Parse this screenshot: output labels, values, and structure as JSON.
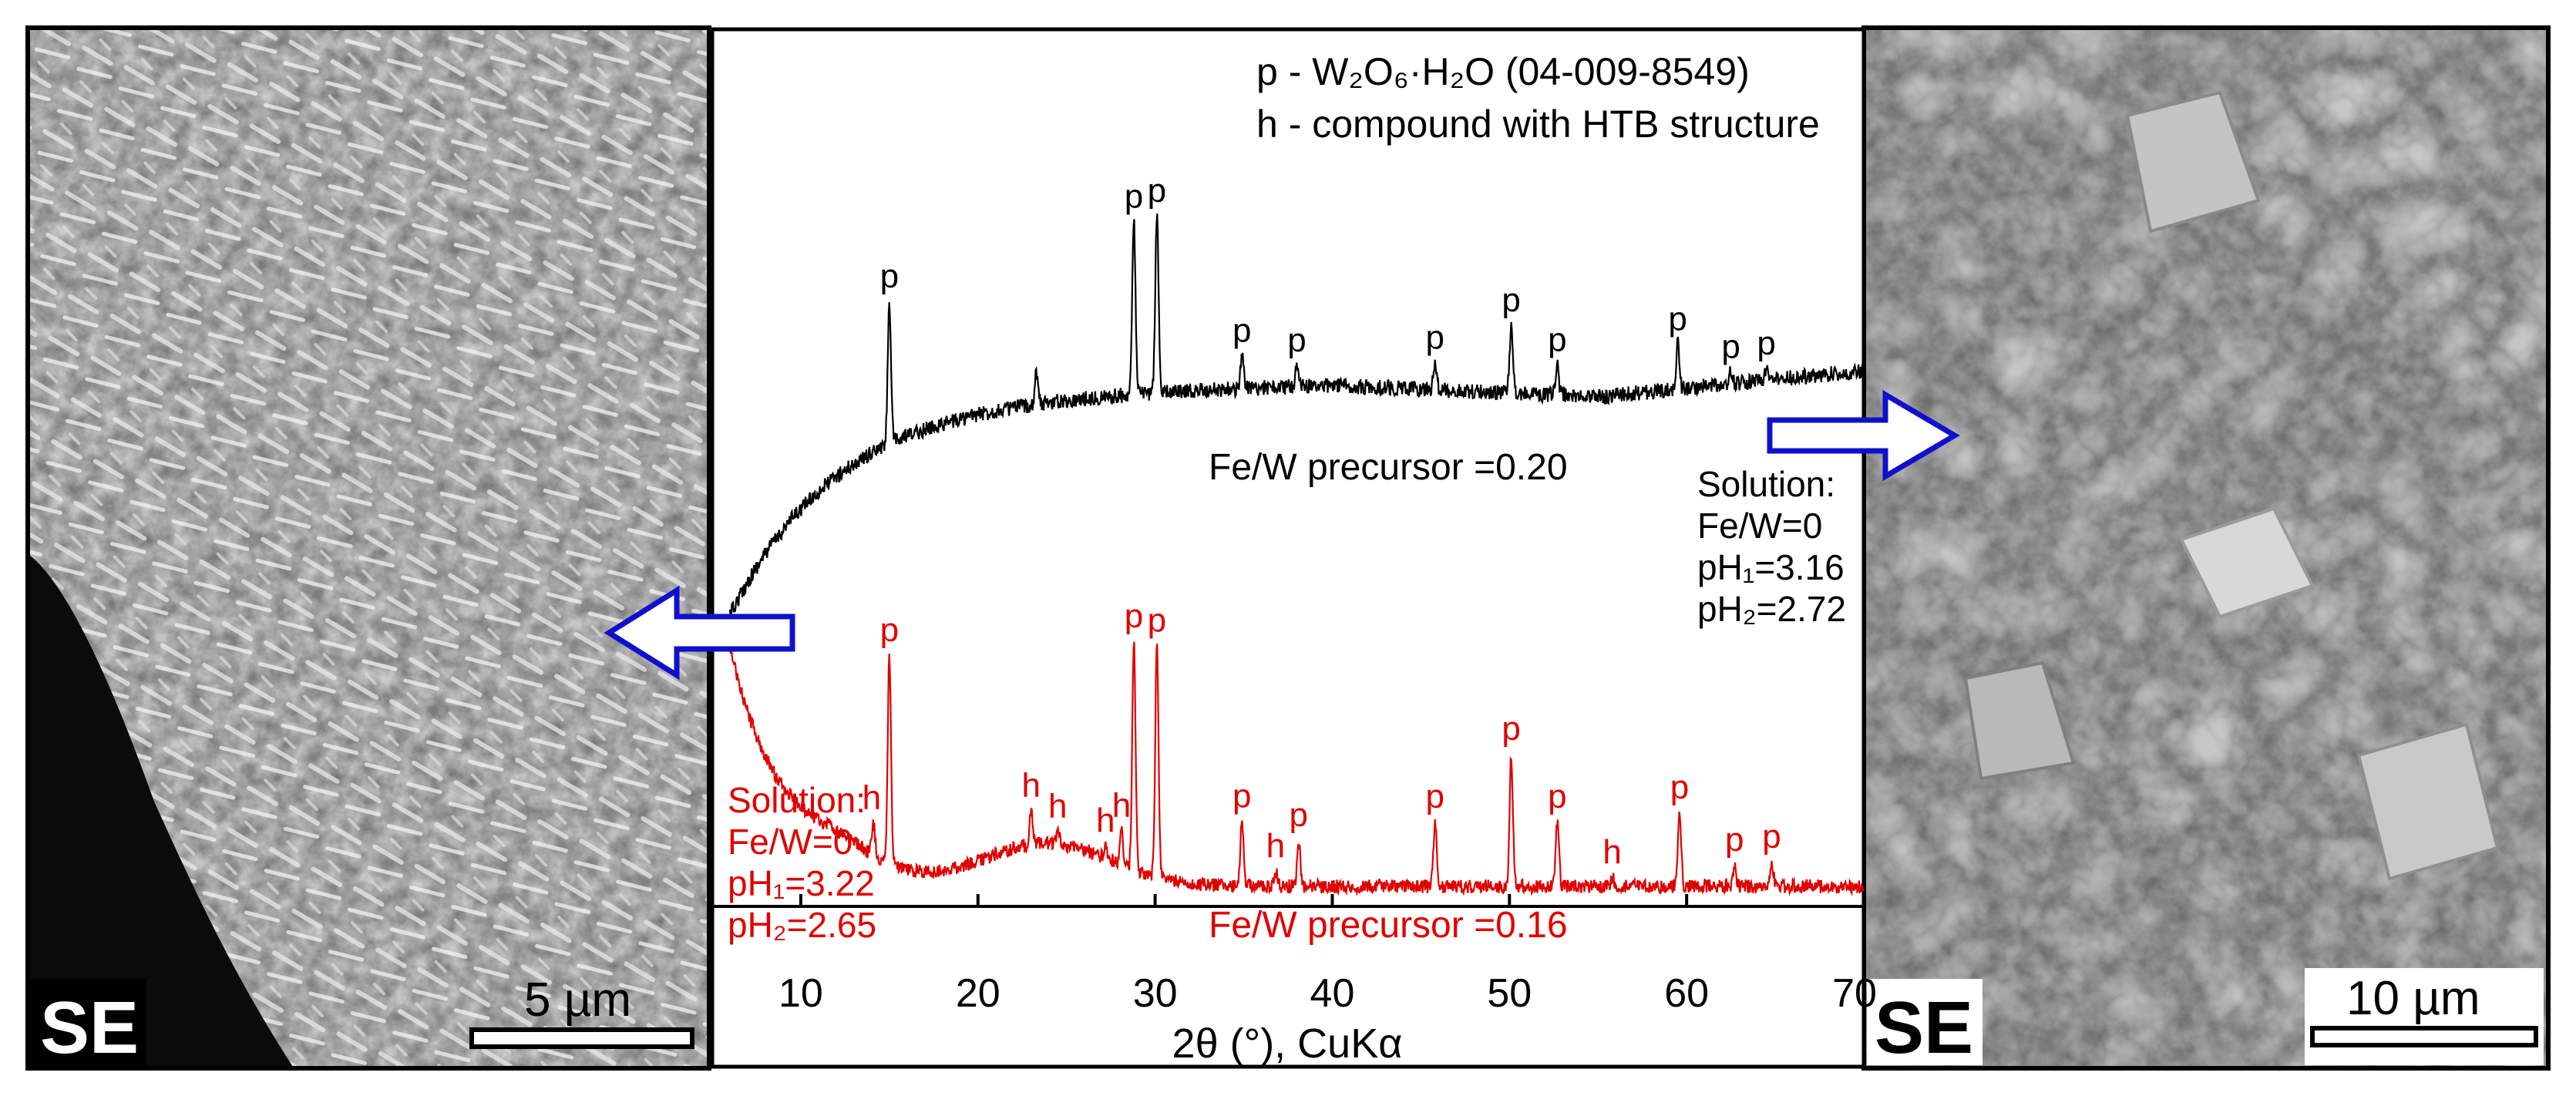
{
  "figure": {
    "left_panel": {
      "detector_label": "SE",
      "scale_bar_label": "5 µm"
    },
    "right_panel": {
      "detector_label": "SE",
      "scale_bar_label": "10 µm"
    }
  },
  "chart_data": {
    "type": "line",
    "xlabel": "2θ (°), CuKα",
    "ylabel": "",
    "xlim": [
      5,
      70
    ],
    "x_ticks": [
      10,
      20,
      30,
      40,
      50,
      60,
      70
    ],
    "y_axis_shown": false,
    "legend": {
      "placement": "top-right",
      "entries": [
        "p - W₂O₆·H₂O (04-009-8549)",
        "h - compound with HTB structure"
      ]
    },
    "series": [
      {
        "name": "Fe/W precursor =0.20",
        "color": "#000000",
        "solution_note": [
          "Solution:",
          "Fe/W=0",
          "pH₁=3.16",
          "pH₂=2.72"
        ],
        "peak_labels": [
          {
            "x": 15.0,
            "label": "p"
          },
          {
            "x": 28.8,
            "label": "p"
          },
          {
            "x": 30.1,
            "label": "p"
          },
          {
            "x": 34.9,
            "label": "p"
          },
          {
            "x": 38.0,
            "label": "p"
          },
          {
            "x": 45.8,
            "label": "p"
          },
          {
            "x": 50.1,
            "label": "p"
          },
          {
            "x": 52.7,
            "label": "p"
          },
          {
            "x": 59.5,
            "label": "p"
          },
          {
            "x": 62.5,
            "label": "p"
          },
          {
            "x": 64.5,
            "label": "p"
          }
        ],
        "peaks": [
          {
            "x": 15.0,
            "h": 95
          },
          {
            "x": 23.3,
            "h": 22
          },
          {
            "x": 28.8,
            "h": 115
          },
          {
            "x": 30.1,
            "h": 118
          },
          {
            "x": 34.9,
            "h": 22
          },
          {
            "x": 38.0,
            "h": 14
          },
          {
            "x": 45.8,
            "h": 18
          },
          {
            "x": 50.1,
            "h": 45
          },
          {
            "x": 52.7,
            "h": 20
          },
          {
            "x": 59.5,
            "h": 30
          },
          {
            "x": 62.5,
            "h": 8
          },
          {
            "x": 64.5,
            "h": 8
          }
        ]
      },
      {
        "name": "Fe/W precursor =0.16",
        "color": "#e00000",
        "solution_note": [
          "Solution:",
          "Fe/W=0",
          "pH₁=3.22",
          "pH₂=2.65"
        ],
        "peak_labels": [
          {
            "x": 14.0,
            "label": "h"
          },
          {
            "x": 15.0,
            "label": "p"
          },
          {
            "x": 23.0,
            "label": "h"
          },
          {
            "x": 24.5,
            "label": "h"
          },
          {
            "x": 27.2,
            "label": "h"
          },
          {
            "x": 28.1,
            "label": "h"
          },
          {
            "x": 28.8,
            "label": "p"
          },
          {
            "x": 30.1,
            "label": "p"
          },
          {
            "x": 34.9,
            "label": "p"
          },
          {
            "x": 36.8,
            "label": "h"
          },
          {
            "x": 38.1,
            "label": "p"
          },
          {
            "x": 45.8,
            "label": "p"
          },
          {
            "x": 50.1,
            "label": "p"
          },
          {
            "x": 52.7,
            "label": "p"
          },
          {
            "x": 55.8,
            "label": "h"
          },
          {
            "x": 59.6,
            "label": "p"
          },
          {
            "x": 62.7,
            "label": "p"
          },
          {
            "x": 64.8,
            "label": "p"
          }
        ],
        "peaks": [
          {
            "x": 14.1,
            "h": 20
          },
          {
            "x": 15.0,
            "h": 135
          },
          {
            "x": 23.0,
            "h": 22
          },
          {
            "x": 24.5,
            "h": 8
          },
          {
            "x": 27.2,
            "h": 8
          },
          {
            "x": 28.1,
            "h": 22
          },
          {
            "x": 28.8,
            "h": 148
          },
          {
            "x": 30.1,
            "h": 150
          },
          {
            "x": 34.9,
            "h": 42
          },
          {
            "x": 36.8,
            "h": 10
          },
          {
            "x": 38.1,
            "h": 30
          },
          {
            "x": 45.8,
            "h": 42
          },
          {
            "x": 50.1,
            "h": 86
          },
          {
            "x": 52.7,
            "h": 42
          },
          {
            "x": 55.8,
            "h": 6
          },
          {
            "x": 59.6,
            "h": 48
          },
          {
            "x": 62.7,
            "h": 14
          },
          {
            "x": 64.8,
            "h": 16
          }
        ]
      }
    ]
  },
  "colors": {
    "black_series": "#000000",
    "red_series": "#e00000",
    "arrow_outline": "#1010cc",
    "arrow_fill": "#ffffff"
  }
}
